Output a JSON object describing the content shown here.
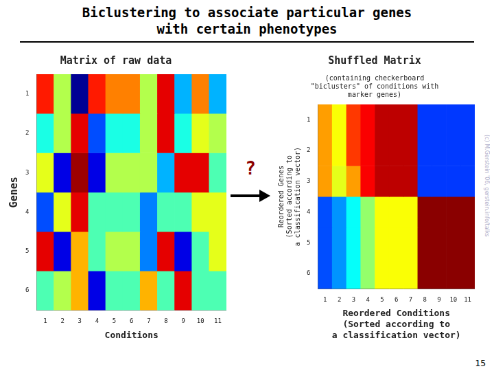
{
  "title": [
    "Biclustering to associate particular genes",
    "with certain phenotypes"
  ],
  "annotation": {
    "text": "?",
    "color": "darkred"
  },
  "watermark": {
    "text": "(c) M.Gerstein '06, gerstein.info/talks",
    "color": "#9999bb"
  },
  "page_number": "15",
  "chart_data": [
    {
      "type": "heatmap",
      "title": "Matrix of raw data",
      "x_label": "Conditions",
      "y_label": "Genes",
      "categories": [
        "1",
        "2",
        "3",
        "4",
        "5",
        "6",
        "7",
        "8",
        "9",
        "10",
        "11"
      ],
      "rows": [
        "1",
        "2",
        "3",
        "4",
        "5",
        "6"
      ],
      "color_range": [
        0,
        1
      ],
      "values": [
        [
          0.85,
          0.55,
          0.02,
          0.85,
          0.75,
          0.75,
          0.55,
          0.9,
          0.3,
          0.75,
          0.3
        ],
        [
          0.4,
          0.55,
          0.9,
          0.2,
          0.4,
          0.4,
          0.55,
          0.9,
          0.4,
          0.6,
          0.55
        ],
        [
          0.6,
          0.1,
          0.97,
          0.1,
          0.55,
          0.55,
          0.55,
          0.3,
          0.9,
          0.9,
          0.45
        ],
        [
          0.2,
          0.6,
          0.9,
          0.45,
          0.45,
          0.45,
          0.25,
          0.45,
          0.45,
          0.6,
          0.6
        ],
        [
          0.9,
          0.1,
          0.7,
          0.45,
          0.55,
          0.55,
          0.25,
          0.9,
          0.1,
          0.45,
          0.6
        ],
        [
          0.45,
          0.55,
          0.7,
          0.1,
          0.45,
          0.45,
          0.7,
          0.45,
          0.9,
          0.45,
          0.45
        ]
      ]
    },
    {
      "type": "heatmap",
      "title": "Shuffled Matrix",
      "subtitle": "(containing checkerboard\n\"biclusters\" of conditions with\nmarker genes)",
      "x_label": "Reordered Conditions",
      "x_subtitle": "(Sorted according to\na classification vector)",
      "y_label": "Reordered Genes\n(Sorted according to\na classification vector)",
      "categories": [
        "1",
        "2",
        "3",
        "4",
        "5",
        "6",
        "7",
        "8",
        "9",
        "10",
        "11"
      ],
      "rows": [
        "1",
        "2",
        "3",
        "4",
        "5",
        "6"
      ],
      "color_range": [
        0,
        1
      ],
      "values": [
        [
          0.72,
          0.62,
          0.82,
          0.88,
          0.94,
          0.94,
          0.94,
          0.18,
          0.18,
          0.18,
          0.18
        ],
        [
          0.72,
          0.62,
          0.82,
          0.88,
          0.94,
          0.94,
          0.94,
          0.18,
          0.18,
          0.18,
          0.18
        ],
        [
          0.72,
          0.6,
          0.72,
          0.88,
          0.94,
          0.94,
          0.94,
          0.18,
          0.18,
          0.18,
          0.18
        ],
        [
          0.2,
          0.27,
          0.38,
          0.52,
          0.62,
          0.62,
          0.62,
          0.99,
          0.99,
          0.99,
          0.99
        ],
        [
          0.2,
          0.27,
          0.38,
          0.52,
          0.62,
          0.62,
          0.62,
          0.99,
          0.99,
          0.99,
          0.99
        ],
        [
          0.2,
          0.27,
          0.38,
          0.52,
          0.62,
          0.62,
          0.62,
          0.99,
          0.99,
          0.99,
          0.99
        ]
      ]
    }
  ]
}
